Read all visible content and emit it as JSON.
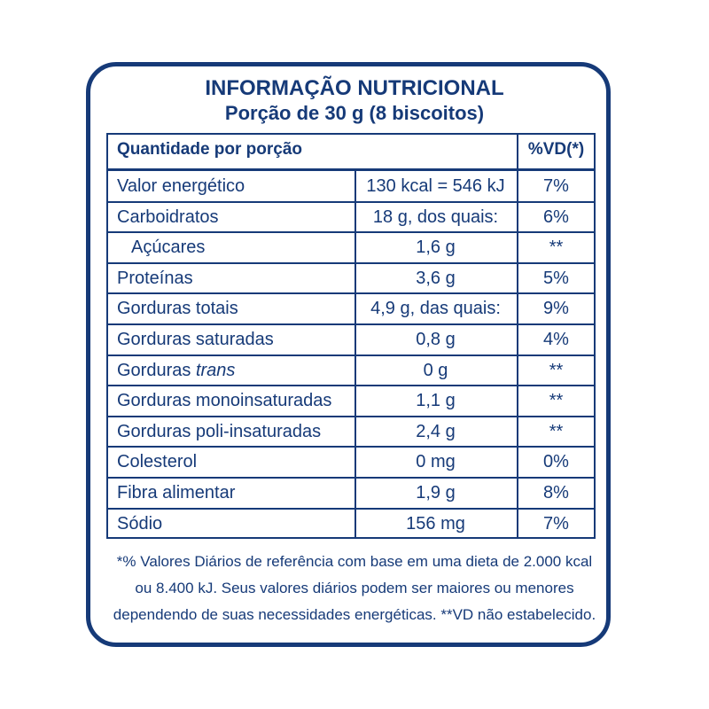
{
  "header": {
    "title": "INFORMAÇÃO NUTRICIONAL",
    "subtitle": "Porção de 30 g (8 biscoitos)"
  },
  "table": {
    "header": [
      "Quantidade por porção",
      "%VD(*)"
    ],
    "rows": [
      {
        "name": "Valor energético",
        "amount": "130 kcal = 546 kJ",
        "vd": "7%"
      },
      {
        "name": "Carboidratos",
        "amount": "18 g, dos quais:",
        "vd": "6%"
      },
      {
        "name": "Açúcares",
        "amount": "1,6 g",
        "vd": "**",
        "indent": true
      },
      {
        "name": "Proteínas",
        "amount": "3,6 g",
        "vd": "5%"
      },
      {
        "name": "Gorduras totais",
        "amount": "4,9 g, das quais:",
        "vd": "9%"
      },
      {
        "name": "Gorduras saturadas",
        "amount": "0,8 g",
        "vd": "4%"
      },
      {
        "name": "Gorduras",
        "name_italic": "trans",
        "amount": "0 g",
        "vd": "**"
      },
      {
        "name": "Gorduras monoinsaturadas",
        "amount": "1,1 g",
        "vd": "**"
      },
      {
        "name": "Gorduras poli-insaturadas",
        "amount": "2,4 g",
        "vd": "**"
      },
      {
        "name": "Colesterol",
        "amount": "0 mg",
        "vd": "0%"
      },
      {
        "name": "Fibra alimentar",
        "amount": "1,9 g",
        "vd": "8%"
      },
      {
        "name": "Sódio",
        "amount": "156 mg",
        "vd": "7%"
      }
    ]
  },
  "footnote": {
    "lines": [
      "*% Valores Diários de referência com base em uma dieta de 2.000 kcal",
      "ou 8.400 kJ. Seus valores diários podem ser maiores ou menores",
      "dependendo de suas necessidades energéticas. **VD não estabelecido."
    ]
  }
}
